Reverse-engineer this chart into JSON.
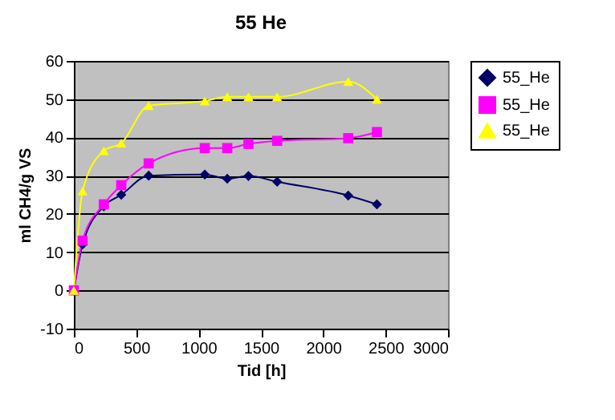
{
  "chart_data": {
    "type": "line",
    "title": "55 He",
    "xlabel": "Tid [h]",
    "ylabel": "ml CH4/g VS",
    "x": [
      0,
      70,
      240,
      380,
      600,
      1050,
      1230,
      1400,
      1630,
      2200,
      2430
    ],
    "series": [
      {
        "name": "55_He",
        "color": "#000066",
        "marker": "diamond",
        "values": [
          0,
          12,
          22,
          25,
          30,
          30.3,
          29.2,
          29.9,
          28.4,
          24.8,
          22.5
        ]
      },
      {
        "name": "55_He",
        "color": "#ff00ff",
        "marker": "square",
        "values": [
          0,
          13,
          22.5,
          27.5,
          33.2,
          37.2,
          37.2,
          38.3,
          39.1,
          39.8,
          41.4
        ]
      },
      {
        "name": "55_He",
        "color": "#ffff00",
        "marker": "triangle",
        "values": [
          0,
          26,
          36.5,
          38.5,
          48.3,
          49.5,
          50.6,
          50.6,
          50.6,
          54.6,
          50
        ]
      }
    ],
    "xlim": [
      0,
      3000
    ],
    "xticks": [
      0,
      500,
      1000,
      1500,
      2000,
      2500,
      3000
    ],
    "ylim": [
      -10,
      60
    ],
    "yticks": [
      -10,
      0,
      10,
      20,
      30,
      40,
      50,
      60
    ],
    "grid": "y",
    "legend": "right"
  }
}
